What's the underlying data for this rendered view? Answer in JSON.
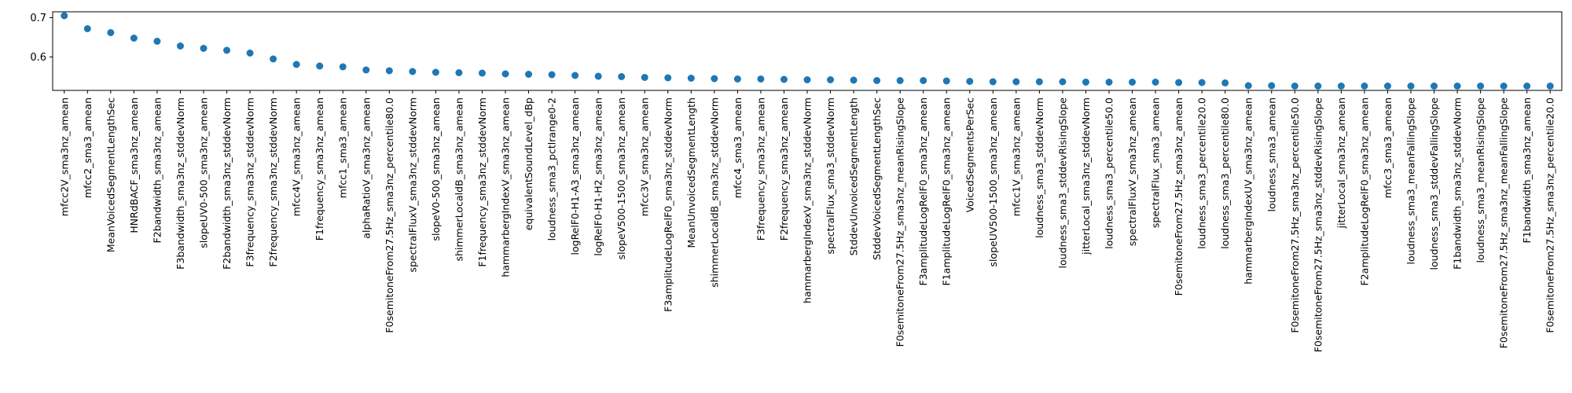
{
  "chart_data": {
    "type": "scatter",
    "title": "",
    "xlabel": "",
    "ylabel": "",
    "ylim": [
      0.515,
      0.715
    ],
    "yticks": [
      0.5,
      0.6,
      0.7
    ],
    "grid": false,
    "marker_color": "#1f77b4",
    "categories": [
      "mfcc2V_sma3nz_amean",
      "mfcc2_sma3_amean",
      "MeanVoicedSegmentLengthSec",
      "HNRdBACF_sma3nz_amean",
      "F2bandwidth_sma3nz_amean",
      "F3bandwidth_sma3nz_stddevNorm",
      "slopeUV0-500_sma3nz_amean",
      "F2bandwidth_sma3nz_stddevNorm",
      "F3frequency_sma3nz_stddevNorm",
      "F2frequency_sma3nz_stddevNorm",
      "mfcc4V_sma3nz_amean",
      "F1frequency_sma3nz_amean",
      "mfcc1_sma3_amean",
      "alphaRatioV_sma3nz_amean",
      "F0semitoneFrom27.5Hz_sma3nz_percentile80.0",
      "spectralFluxV_sma3nz_stddevNorm",
      "slopeV0-500_sma3nz_amean",
      "shimmerLocaldB_sma3nz_amean",
      "F1frequency_sma3nz_stddevNorm",
      "hammarbergIndexV_sma3nz_amean",
      "equivalentSoundLevel_dBp",
      "loudness_sma3_pctlrange0-2",
      "logRelF0-H1-A3_sma3nz_amean",
      "logRelF0-H1-H2_sma3nz_amean",
      "slopeV500-1500_sma3nz_amean",
      "mfcc3V_sma3nz_amean",
      "F3amplitudeLogRelF0_sma3nz_stddevNorm",
      "MeanUnvoicedSegmentLength",
      "shimmerLocaldB_sma3nz_stddevNorm",
      "mfcc4_sma3_amean",
      "F3frequency_sma3nz_amean",
      "F2frequency_sma3nz_amean",
      "hammarbergIndexV_sma3nz_stddevNorm",
      "spectralFlux_sma3_stddevNorm",
      "StddevUnvoicedSegmentLength",
      "StddevVoicedSegmentLengthSec",
      "F0semitoneFrom27.5Hz_sma3nz_meanRisingSlope",
      "F3amplitudeLogRelF0_sma3nz_amean",
      "F1amplitudeLogRelF0_sma3nz_amean",
      "VoicedSegmentsPerSec",
      "slopeUV500-1500_sma3nz_amean",
      "mfcc1V_sma3nz_amean",
      "loudness_sma3_stddevNorm",
      "loudness_sma3_stddevRisingSlope",
      "jitterLocal_sma3nz_stddevNorm",
      "loudness_sma3_percentile50.0",
      "spectralFluxV_sma3nz_amean",
      "spectralFlux_sma3_amean",
      "F0semitoneFrom27.5Hz_sma3nz_amean",
      "loudness_sma3_percentile20.0",
      "loudness_sma3_percentile80.0",
      "hammarbergIndexUV_sma3nz_amean",
      "loudness_sma3_amean",
      "F0semitoneFrom27.5Hz_sma3nz_percentile50.0",
      "F0semitoneFrom27.5Hz_sma3nz_stddevRisingSlope",
      "jitterLocal_sma3nz_amean",
      "F2amplitudeLogRelF0_sma3nz_amean",
      "mfcc3_sma3_amean",
      "loudness_sma3_meanFallingSlope",
      "loudness_sma3_stddevFallingSlope",
      "F1bandwidth_sma3nz_stddevNorm",
      "loudness_sma3_meanRisingSlope",
      "F0semitoneFrom27.5Hz_sma3nz_meanFallingSlope",
      "F1bandwidth_sma3nz_amean",
      "F0semitoneFrom27.5Hz_sma3nz_percentile20.0"
    ],
    "values": [
      0.705,
      0.672,
      0.662,
      0.648,
      0.64,
      0.628,
      0.622,
      0.617,
      0.61,
      0.595,
      0.581,
      0.577,
      0.575,
      0.567,
      0.565,
      0.563,
      0.561,
      0.56,
      0.559,
      0.557,
      0.556,
      0.555,
      0.553,
      0.551,
      0.55,
      0.548,
      0.547,
      0.546,
      0.545,
      0.544,
      0.544,
      0.543,
      0.542,
      0.542,
      0.541,
      0.54,
      0.54,
      0.54,
      0.539,
      0.538,
      0.537,
      0.537,
      0.537,
      0.537,
      0.536,
      0.536,
      0.536,
      0.536,
      0.535,
      0.535,
      0.534,
      0.527,
      0.527,
      0.526,
      0.526,
      0.526,
      0.526,
      0.526,
      0.526,
      0.526,
      0.526,
      0.526,
      0.526,
      0.526,
      0.526
    ]
  }
}
